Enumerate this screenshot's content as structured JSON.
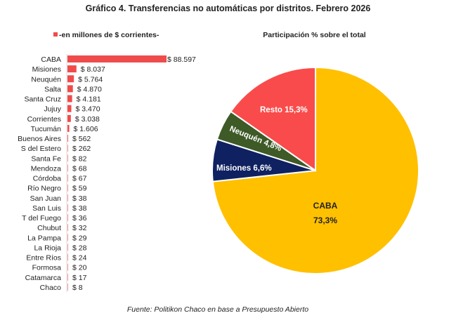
{
  "title": "Gráfico 4. Transferencias no automáticas por distritos. Febrero 2026",
  "source": "Fuente: Politikon Chaco en base a Presupuesto Abierto",
  "colors": {
    "bar": "#F04B4B",
    "caba": "#FFC000",
    "misiones": "#0F2160",
    "neuquen": "#3D5A27",
    "resto": "#F94B4B"
  },
  "chart_data": [
    {
      "type": "bar",
      "orientation": "horizontal",
      "legend": "-en millones de $ corrientes-",
      "categories": [
        "CABA",
        "Misiones",
        "Neuquén",
        "Salta",
        "Santa Cruz",
        "Jujuy",
        "Corrientes",
        "Tucumán",
        "Buenos Aires",
        "S del Estero",
        "Santa Fe",
        "Mendoza",
        "Córdoba",
        "Río Negro",
        "San Juan",
        "San Luis",
        "T del Fuego",
        "Chubut",
        "La Pampa",
        "La Rioja",
        "Entre Ríos",
        "Formosa",
        "Catamarca",
        "Chaco"
      ],
      "values": [
        88597,
        8037,
        5764,
        4870,
        4181,
        3470,
        3038,
        1606,
        562,
        262,
        82,
        68,
        67,
        59,
        38,
        38,
        36,
        32,
        29,
        28,
        24,
        20,
        17,
        8
      ],
      "labels": [
        "$ 88.597",
        "$ 8.037",
        "$ 5.764",
        "$ 4.870",
        "$ 4.181",
        "$ 3.470",
        "$ 3.038",
        "$ 1.606",
        "$ 562",
        "$ 262",
        "$ 82",
        "$ 68",
        "$ 67",
        "$ 59",
        "$ 38",
        "$ 38",
        "$ 36",
        "$ 32",
        "$ 29",
        "$ 28",
        "$ 24",
        "$ 20",
        "$ 17",
        "$ 8"
      ]
    },
    {
      "type": "pie",
      "title": "Participación % sobre el total",
      "slices": [
        {
          "name": "CABA",
          "value": 73.3,
          "label": "73,3%"
        },
        {
          "name": "Misiones",
          "value": 6.6,
          "label": "Misiones 6,6%"
        },
        {
          "name": "Neuquén",
          "value": 4.8,
          "label": "Neuquén 4,8%"
        },
        {
          "name": "Resto",
          "value": 15.3,
          "label": "Resto 15,3%"
        }
      ]
    }
  ]
}
